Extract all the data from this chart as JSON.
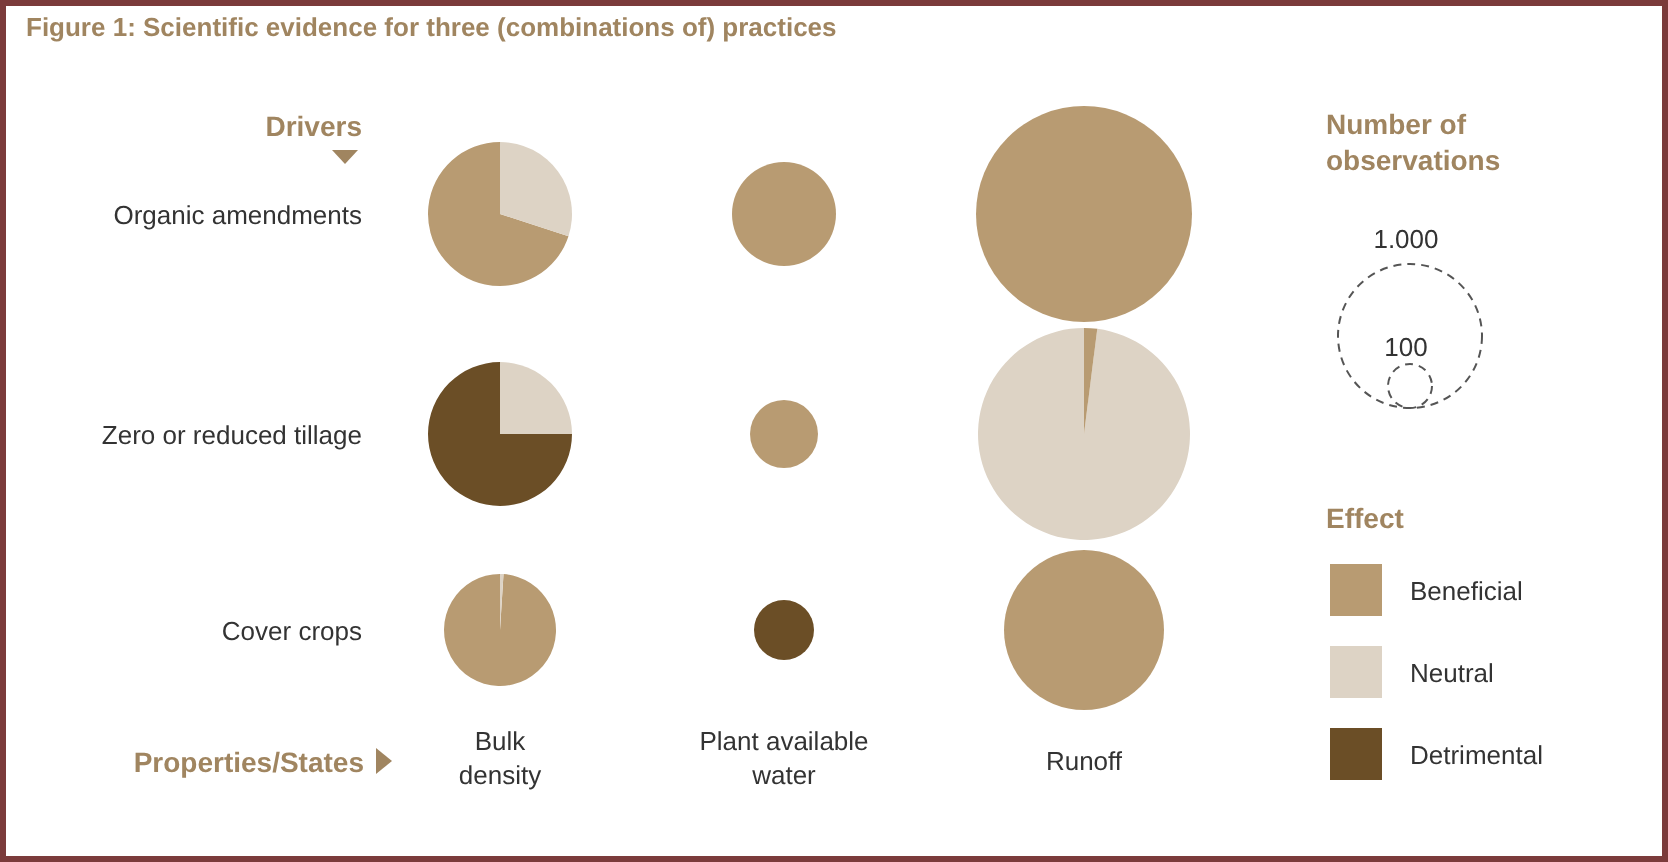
{
  "chart_data": [
    {
      "type": "other",
      "title": "Figure 1: Scientific evidence for three (combinations of) practices",
      "annotations": [
        "Drivers",
        "Properties/States"
      ]
    },
    {
      "type": "pie",
      "ylabel": "Organic amendments",
      "categories": [
        "Beneficial",
        "Neutral",
        "Detrimental"
      ],
      "values": [
        70,
        30,
        0
      ],
      "colors": [
        "#b89b72",
        "#ddd3c5",
        "#6b4e26"
      ],
      "legend": "right",
      "legend_title": "Effect"
    },
    {
      "type": "pie",
      "categories": [
        null
      ],
      "values": [
        100
      ],
      "colors": [
        "#b89b72"
      ]
    },
    {
      "type": "pie",
      "categories": [
        null
      ],
      "values": [
        100
      ],
      "colors": [
        "#b89b72"
      ]
    },
    {
      "type": "pie",
      "ylabel": "Zero or reduced tillage",
      "categories": [
        null,
        null
      ],
      "values": [
        75,
        25
      ],
      "colors": [
        "#6b4e26",
        "#ddd3c5"
      ]
    },
    {
      "type": "pie",
      "categories": [
        null
      ],
      "values": [
        100
      ],
      "colors": [
        "#b89b72"
      ]
    },
    {
      "type": "pie",
      "categories": [
        null,
        null
      ],
      "values": [
        98,
        2
      ],
      "colors": [
        "#ddd3c5",
        "#b89b72"
      ]
    },
    {
      "type": "pie",
      "ylabel": "Cover crops",
      "xlabel": "Bulk density",
      "categories": [
        null,
        null
      ],
      "values": [
        99,
        1
      ],
      "colors": [
        "#b89b72",
        "#ddd3c5"
      ]
    },
    {
      "type": "pie",
      "xlabel": "Plant available water",
      "categories": [
        null
      ],
      "values": [
        100
      ],
      "colors": [
        "#6b4e26"
      ]
    },
    {
      "type": "pie",
      "xlabel": "Runoff",
      "categories": [
        null
      ],
      "values": [
        100
      ],
      "colors": [
        "#b89b72"
      ]
    },
    {
      "type": "other",
      "title": "Number of observations",
      "annotations": [
        "1.000",
        "100"
      ]
    }
  ]
}
